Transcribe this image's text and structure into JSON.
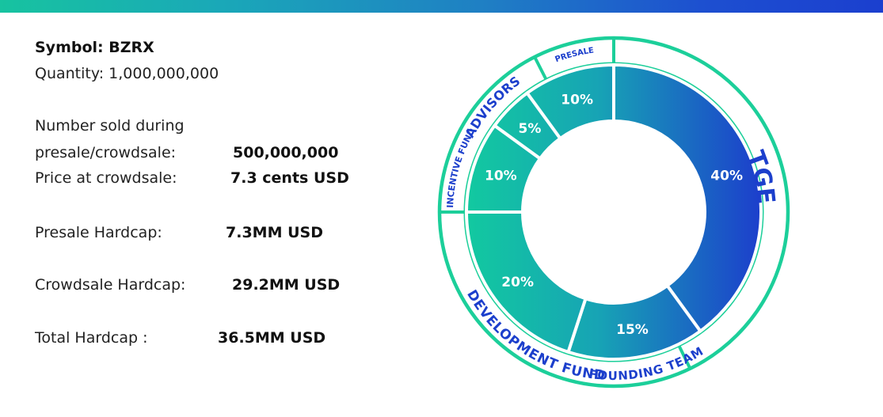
{
  "info": {
    "symbol": "Symbol: BZRX",
    "quantity": "Quantity: 1,000,000,000",
    "sold_label_1": "Number sold during",
    "sold_label_2": "presale/crowdsale:",
    "sold_value": "500,000,000",
    "price_label": "Price at crowdsale:",
    "price_value": "7.3 cents USD",
    "presale_label": "Presale Hardcap:",
    "presale_value": "7.3MM USD",
    "crowdsale_label": "Crowdsale Hardcap:",
    "crowdsale_value": "29.2MM  USD",
    "total_label": "Total Hardcap :",
    "total_value": "36.5MM USD"
  },
  "colors": {
    "teal": "#12c9a0",
    "blue": "#1c3fcc",
    "outline": "#1ccf9a"
  },
  "chart_data": {
    "type": "pie",
    "style": "donut",
    "slices": [
      {
        "label": "TGE",
        "value": 40,
        "pct_label": "40%"
      },
      {
        "label": "FOUNDING TEAM",
        "value": 15,
        "pct_label": "15%"
      },
      {
        "label": "DEVELOPMENT FUND",
        "value": 20,
        "pct_label": "20%"
      },
      {
        "label": "INCENTIVE FUND",
        "value": 10,
        "pct_label": "10%"
      },
      {
        "label": "ADVISORS",
        "value": 5,
        "pct_label": "5%"
      },
      {
        "label": "PRESALE",
        "value": 10,
        "pct_label": "10%"
      }
    ]
  }
}
